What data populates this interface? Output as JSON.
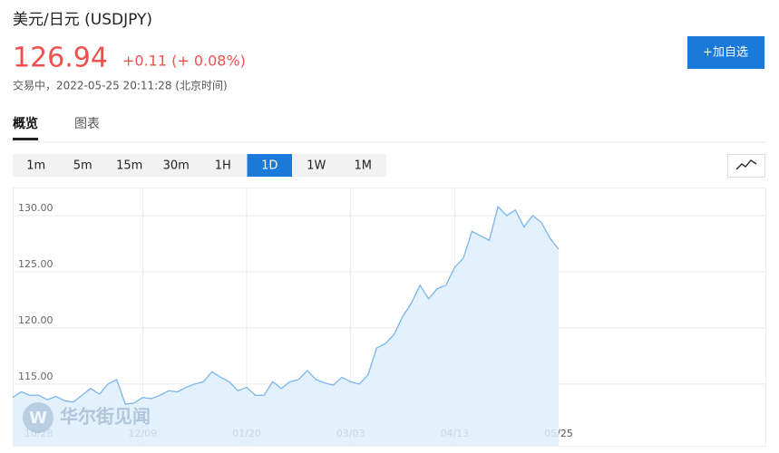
{
  "header": {
    "title": "美元/日元 (USDJPY)",
    "price": "126.94",
    "change": "+0.11 (+ 0.08%)",
    "status": "交易中，2022-05-25 20:11:28 (北京时间)",
    "button": "+加自选"
  },
  "tabs": [
    "概览",
    "图表"
  ],
  "active_tab": 0,
  "intervals": [
    "1m",
    "5m",
    "15m",
    "30m",
    "1H",
    "1D",
    "1W",
    "1M"
  ],
  "active_interval": 5,
  "watermark": "华尔街见闻",
  "chart_data": {
    "type": "area",
    "color": "#7cb5ec",
    "fill": "#ddeefc",
    "categories": [
      null,
      null,
      null,
      "10/28",
      null,
      null,
      null,
      null,
      null,
      null,
      null,
      null,
      null,
      null,
      null,
      "12/09",
      null,
      null,
      null,
      null,
      null,
      null,
      null,
      null,
      null,
      null,
      null,
      "01/20",
      null,
      null,
      null,
      null,
      null,
      null,
      null,
      null,
      null,
      null,
      null,
      "03/03",
      null,
      null,
      null,
      null,
      null,
      null,
      null,
      null,
      null,
      null,
      null,
      "04/13",
      null,
      null,
      null,
      null,
      null,
      null,
      null,
      null,
      null,
      null,
      null,
      "05/25"
    ],
    "values": [
      113.8,
      114.3,
      114.0,
      114.0,
      113.6,
      113.9,
      113.5,
      113.4,
      114.0,
      114.6,
      114.1,
      115.0,
      115.4,
      113.2,
      113.3,
      113.8,
      113.7,
      114.0,
      114.4,
      114.3,
      114.7,
      115.0,
      115.2,
      116.1,
      115.6,
      115.2,
      114.4,
      114.7,
      114.0,
      114.0,
      115.2,
      114.6,
      115.2,
      115.4,
      116.2,
      115.4,
      115.1,
      114.9,
      115.6,
      115.2,
      115.0,
      115.8,
      118.2,
      118.6,
      119.4,
      121.0,
      122.2,
      123.8,
      122.6,
      123.5,
      123.8,
      125.4,
      126.2,
      128.6,
      128.2,
      127.8,
      130.8,
      130.0,
      130.5,
      129.0,
      130.0,
      129.4,
      128.0,
      127.0
    ],
    "ylim": [
      109.5,
      132.5
    ],
    "yticks": [
      {
        "value": 115,
        "label": "115.00"
      },
      {
        "value": 120,
        "label": "120.00"
      },
      {
        "value": 125,
        "label": "125.00"
      },
      {
        "value": 130,
        "label": "130.00"
      }
    ],
    "grid": true
  }
}
